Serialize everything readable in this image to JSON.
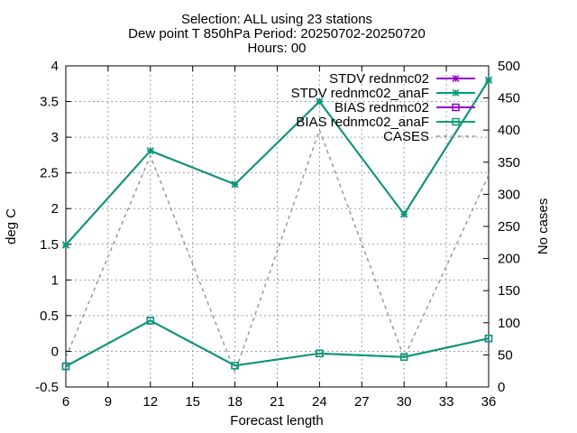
{
  "title_lines": [
    "Selection: ALL using    23 stations",
    "Dew point T 850hPa   Period: 20250702-20250720",
    "Hours: 00"
  ],
  "chart_data": {
    "type": "line",
    "xlabel": "Forecast length",
    "ylabel": "deg C",
    "y2label": "No cases",
    "xlim": [
      6,
      36
    ],
    "ylim": [
      -0.5,
      4
    ],
    "y2lim": [
      0,
      500
    ],
    "xticks": [
      6,
      9,
      12,
      15,
      18,
      21,
      24,
      27,
      30,
      33,
      36
    ],
    "yticks": [
      -0.5,
      0,
      0.5,
      1,
      1.5,
      2,
      2.5,
      3,
      3.5,
      4
    ],
    "yticklabels": [
      "-0.5",
      "0",
      "0.5",
      "1",
      "1.5",
      "2",
      "2.5",
      "3",
      "3.5",
      "4"
    ],
    "y2ticks": [
      0,
      50,
      100,
      150,
      200,
      250,
      300,
      350,
      400,
      450,
      500
    ],
    "grid": true,
    "legend_position": "top-right",
    "x": [
      6,
      12,
      18,
      24,
      30,
      36
    ],
    "series": [
      {
        "name": "STDV rednmc02",
        "axis": "y",
        "color": "#9400d3",
        "marker": "star",
        "dash": false,
        "values": [
          1.49,
          2.81,
          2.34,
          3.5,
          1.92,
          3.8
        ]
      },
      {
        "name": "STDV rednmc02_anaF",
        "axis": "y",
        "color": "#009e73",
        "marker": "star",
        "dash": false,
        "values": [
          1.49,
          2.81,
          2.34,
          3.5,
          1.92,
          3.8
        ]
      },
      {
        "name": "BIAS rednmc02",
        "axis": "y",
        "color": "#9400d3",
        "marker": "square",
        "dash": false,
        "values": [
          -0.21,
          0.43,
          -0.2,
          -0.03,
          -0.08,
          0.18
        ]
      },
      {
        "name": "BIAS rednmc02_anaF",
        "axis": "y",
        "color": "#009e73",
        "marker": "square",
        "dash": false,
        "values": [
          -0.21,
          0.43,
          -0.2,
          -0.03,
          -0.08,
          0.18
        ]
      },
      {
        "name": "CASES",
        "axis": "y2",
        "color": "#999999",
        "marker": "none",
        "dash": true,
        "values": [
          46,
          360,
          23,
          400,
          46,
          330
        ]
      }
    ]
  }
}
